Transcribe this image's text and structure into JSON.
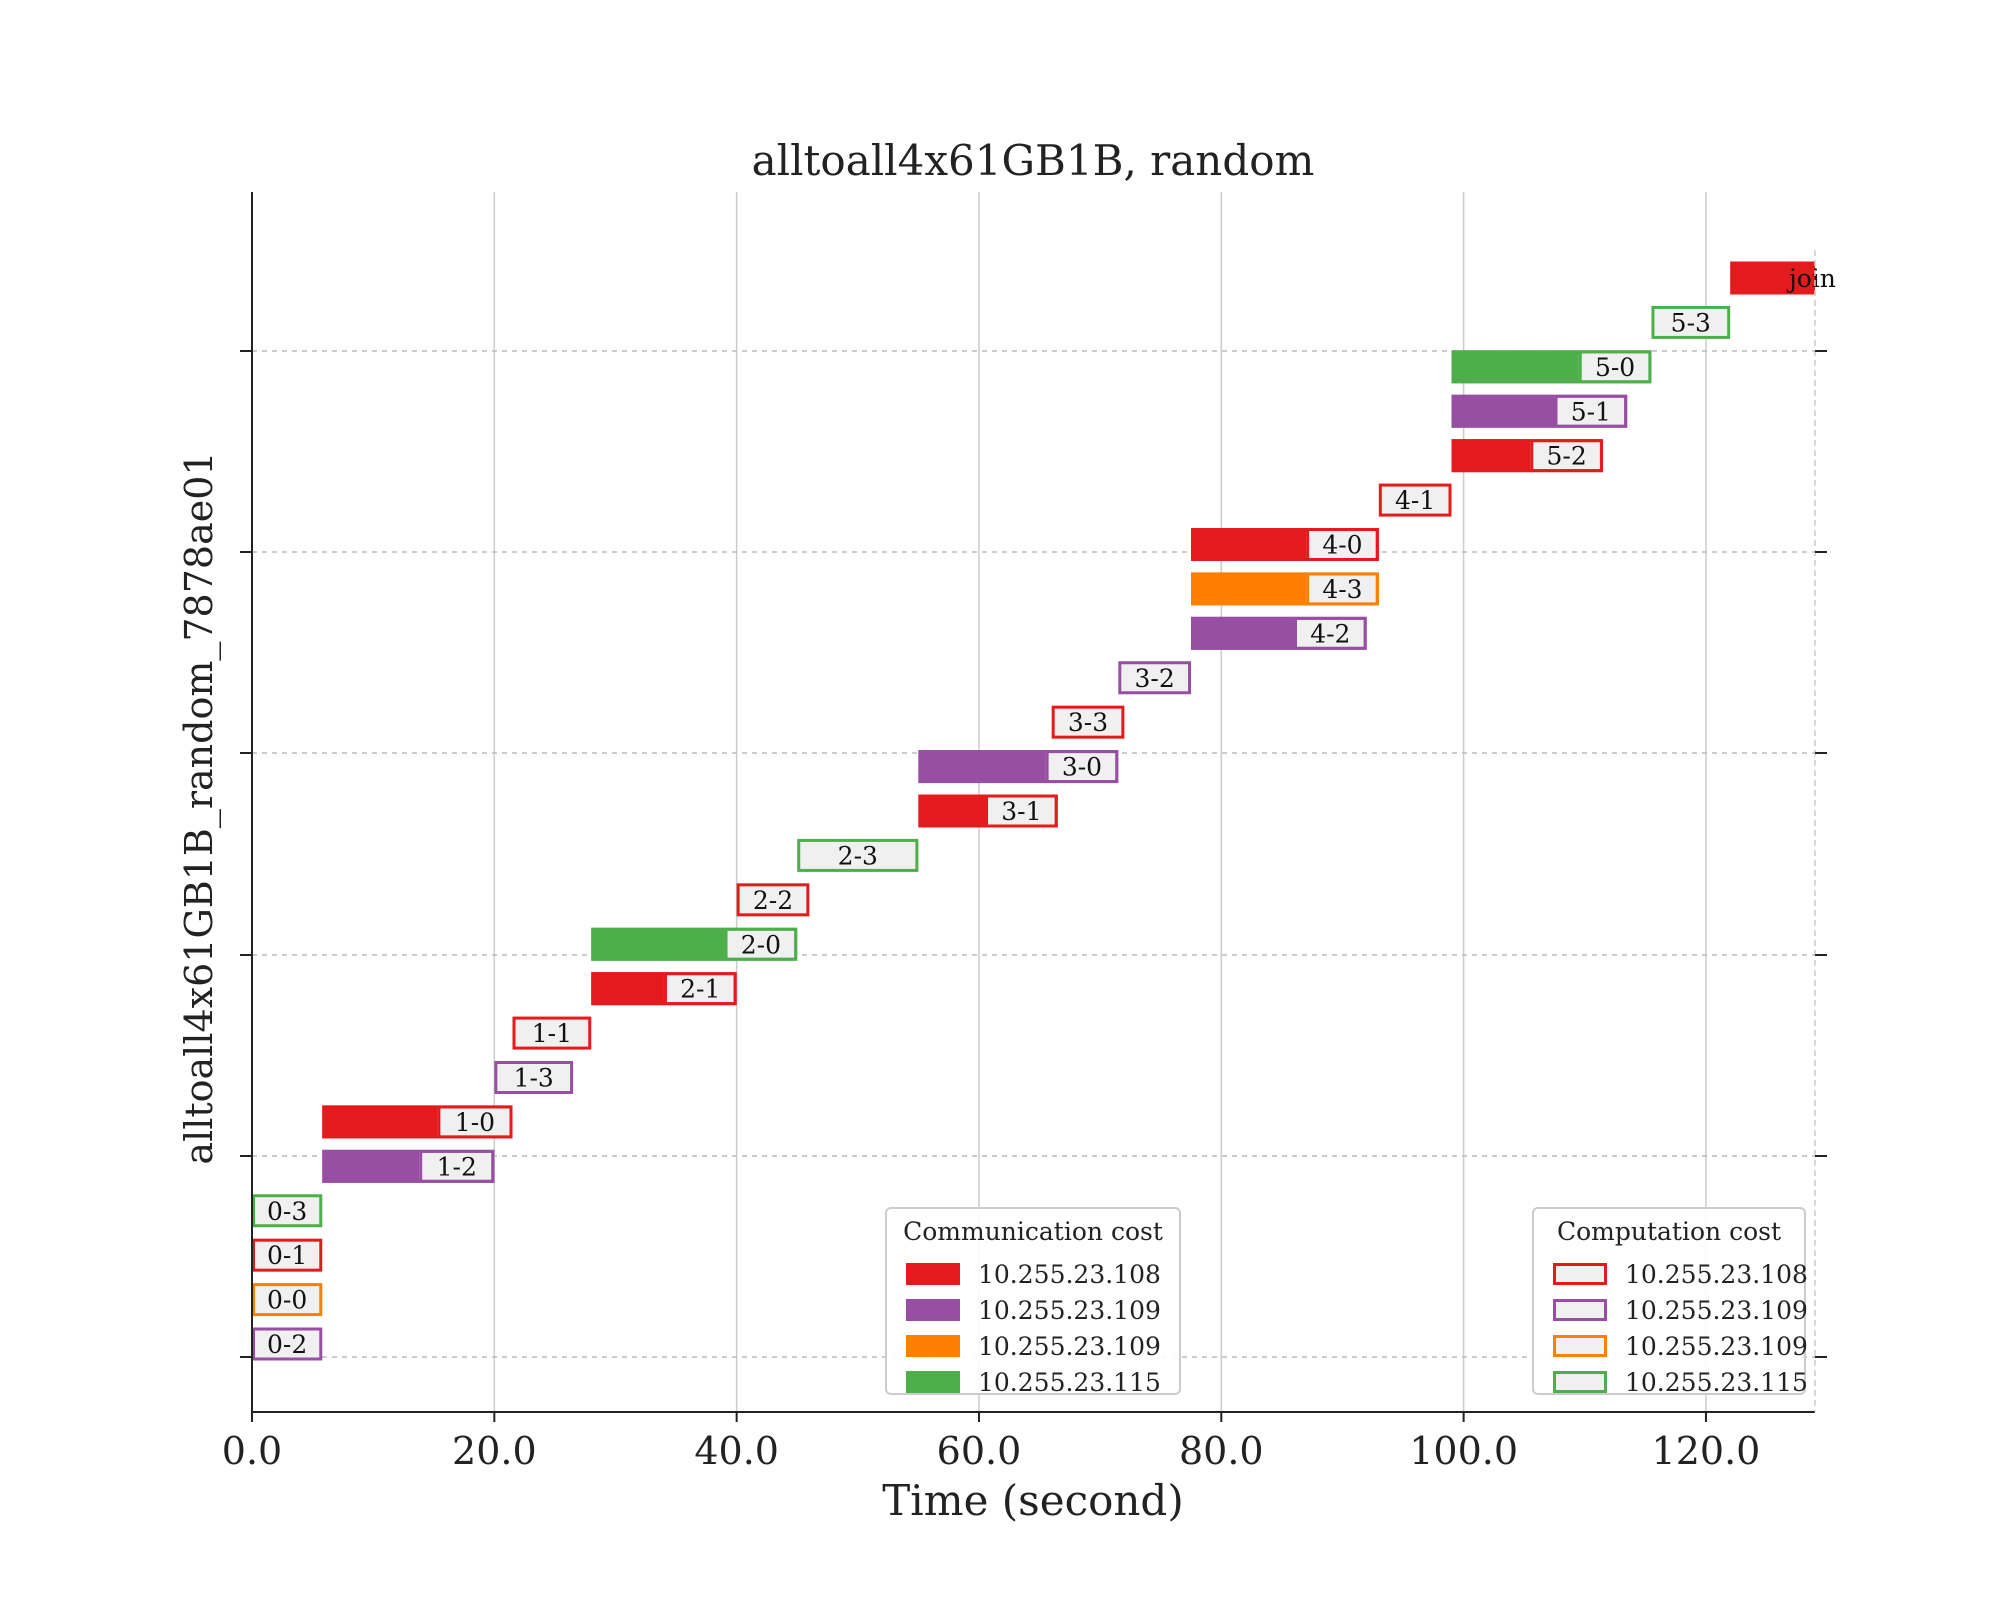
{
  "chart_data": {
    "type": "gantt",
    "title": "alltoall4x61GB1B, random",
    "xlabel": "Time (second)",
    "ylabel": "alltoall4x61GB1B_random_7878ae01",
    "xlim": [
      0,
      129
    ],
    "x_ticks": [
      0,
      20,
      40,
      60,
      80,
      100,
      120
    ],
    "x_tick_labels": [
      "0.0",
      "20.0",
      "40.0",
      "60.0",
      "80.0",
      "100.0",
      "120.0"
    ],
    "grid": {
      "x": "solid",
      "y": "dashed"
    },
    "hosts": [
      {
        "name": "10.255.23.108",
        "color": "#e41a1c"
      },
      {
        "name": "10.255.23.109",
        "color": "#984ea3"
      },
      {
        "name": "10.255.23.109",
        "color": "#ff7f00"
      },
      {
        "name": "10.255.23.115",
        "color": "#4daf4a"
      }
    ],
    "tasks": [
      {
        "label": "join",
        "host": 0,
        "comm_start": 122.0,
        "comm_end": 129.0,
        "comp_end": 129.0
      },
      {
        "label": "5-3",
        "host": 3,
        "comm_start": 115.5,
        "comm_end": 115.5,
        "comp_end": 122.0
      },
      {
        "label": "5-0",
        "host": 3,
        "comm_start": 99.0,
        "comm_end": 109.5,
        "comp_end": 115.5
      },
      {
        "label": "5-1",
        "host": 1,
        "comm_start": 99.0,
        "comm_end": 107.5,
        "comp_end": 113.5
      },
      {
        "label": "5-2",
        "host": 0,
        "comm_start": 99.0,
        "comm_end": 105.5,
        "comp_end": 111.5
      },
      {
        "label": "4-1",
        "host": 0,
        "comm_start": 93.0,
        "comm_end": 93.0,
        "comp_end": 99.0
      },
      {
        "label": "4-0",
        "host": 0,
        "comm_start": 77.5,
        "comm_end": 87.0,
        "comp_end": 93.0
      },
      {
        "label": "4-3",
        "host": 2,
        "comm_start": 77.5,
        "comm_end": 87.0,
        "comp_end": 93.0
      },
      {
        "label": "4-2",
        "host": 1,
        "comm_start": 77.5,
        "comm_end": 86.0,
        "comp_end": 92.0
      },
      {
        "label": "3-2",
        "host": 1,
        "comm_start": 71.5,
        "comm_end": 71.5,
        "comp_end": 77.5
      },
      {
        "label": "3-3",
        "host": 0,
        "comm_start": 66.0,
        "comm_end": 66.0,
        "comp_end": 72.0
      },
      {
        "label": "3-0",
        "host": 1,
        "comm_start": 55.0,
        "comm_end": 65.5,
        "comp_end": 71.5
      },
      {
        "label": "3-1",
        "host": 0,
        "comm_start": 55.0,
        "comm_end": 60.5,
        "comp_end": 66.5
      },
      {
        "label": "2-3",
        "host": 3,
        "comm_start": 45.0,
        "comm_end": 45.0,
        "comp_end": 55.0
      },
      {
        "label": "2-2",
        "host": 0,
        "comm_start": 40.0,
        "comm_end": 40.0,
        "comp_end": 46.0
      },
      {
        "label": "2-0",
        "host": 3,
        "comm_start": 28.0,
        "comm_end": 39.0,
        "comp_end": 45.0
      },
      {
        "label": "2-1",
        "host": 0,
        "comm_start": 28.0,
        "comm_end": 34.0,
        "comp_end": 40.0
      },
      {
        "label": "1-1",
        "host": 0,
        "comm_start": 21.5,
        "comm_end": 21.5,
        "comp_end": 28.0
      },
      {
        "label": "1-3",
        "host": 1,
        "comm_start": 20.0,
        "comm_end": 20.0,
        "comp_end": 26.5
      },
      {
        "label": "1-0",
        "host": 0,
        "comm_start": 5.8,
        "comm_end": 15.3,
        "comp_end": 21.5
      },
      {
        "label": "1-2",
        "host": 1,
        "comm_start": 5.8,
        "comm_end": 13.8,
        "comp_end": 20.0
      },
      {
        "label": "0-3",
        "host": 3,
        "comm_start": 0.0,
        "comm_end": 0.0,
        "comp_end": 5.8
      },
      {
        "label": "0-1",
        "host": 0,
        "comm_start": 0.0,
        "comm_end": 0.0,
        "comp_end": 5.8
      },
      {
        "label": "0-0",
        "host": 2,
        "comm_start": 0.0,
        "comm_end": 0.0,
        "comp_end": 5.8
      },
      {
        "label": "0-2",
        "host": 1,
        "comm_start": 0.0,
        "comm_end": 0.0,
        "comp_end": 5.8
      }
    ],
    "legends": [
      {
        "title": "Communication cost",
        "style": "filled",
        "placement": "lower-center"
      },
      {
        "title": "Computation cost",
        "style": "outline",
        "placement": "lower-right"
      }
    ]
  }
}
